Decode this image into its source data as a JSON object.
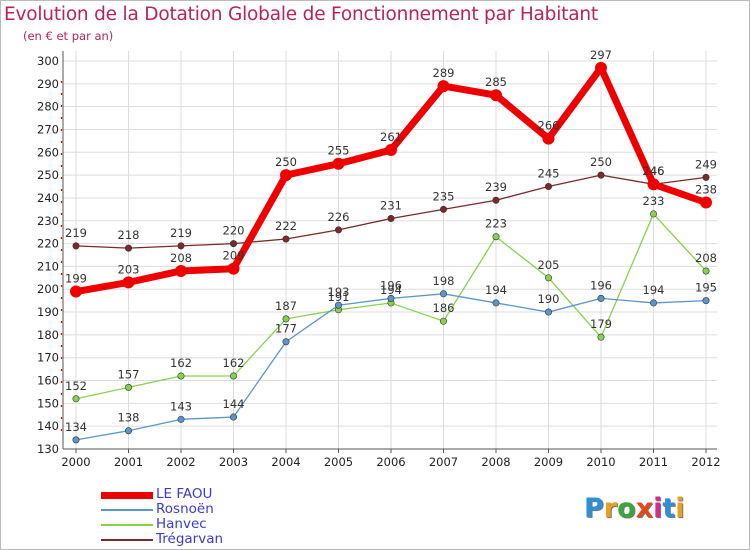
{
  "header": {
    "title": "Evolution de la Dotation Globale de Fonctionnement par Habitant",
    "subtitle": "(en € et par an)"
  },
  "logo": {
    "text": "Proxiti",
    "letters": [
      "P",
      "r",
      "o",
      "x",
      "i",
      "t",
      "i"
    ],
    "colors": [
      "#2e8fd6",
      "#e8a020",
      "#3aa63a",
      "#e04a1a",
      "#d42a8a",
      "#2e8fd6",
      "#e8a020"
    ]
  },
  "chart_data": {
    "type": "line",
    "title": "Evolution de la Dotation Globale de Fonctionnement par Habitant",
    "subtitle": "(en € et par an)",
    "xlabel": "",
    "ylabel": "",
    "categories": [
      "2000",
      "2001",
      "2002",
      "2003",
      "2004",
      "2005",
      "2006",
      "2007",
      "2008",
      "2009",
      "2010",
      "2011",
      "2012"
    ],
    "ylim": [
      130,
      300
    ],
    "yticks": [
      130,
      140,
      150,
      160,
      170,
      180,
      190,
      200,
      210,
      220,
      230,
      240,
      250,
      260,
      270,
      280,
      290,
      300
    ],
    "grid": true,
    "legend_position": "bottom-left",
    "series": [
      {
        "name": "Trégarvan",
        "color": "#7a2a2a",
        "values": [
          219,
          218,
          219,
          220,
          222,
          226,
          231,
          235,
          239,
          245,
          250,
          246,
          249
        ]
      },
      {
        "name": "Hanvec",
        "color": "#88d050",
        "values": [
          152,
          157,
          162,
          162,
          187,
          191,
          194,
          186,
          223,
          205,
          179,
          233,
          208
        ]
      },
      {
        "name": "Rosnoën",
        "color": "#5c96c8",
        "values": [
          134,
          138,
          143,
          144,
          177,
          193,
          196,
          198,
          194,
          190,
          196,
          194,
          195
        ]
      },
      {
        "name": "LE FAOU",
        "color": "#ee0000",
        "values": [
          199,
          203,
          208,
          209,
          250,
          255,
          261,
          289,
          285,
          266,
          297,
          246,
          238
        ]
      }
    ],
    "legend": [
      "LE FAOU",
      "Rosnoën",
      "Hanvec",
      "Trégarvan"
    ]
  }
}
